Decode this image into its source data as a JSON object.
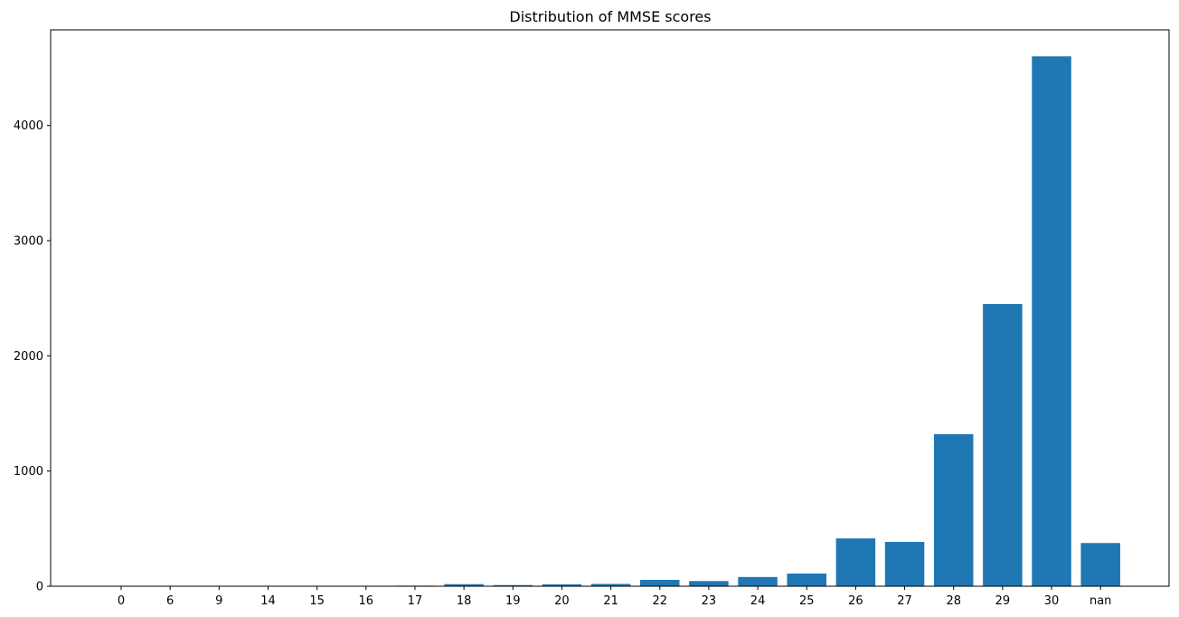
{
  "chart_data": {
    "type": "bar",
    "title": "Distribution of MMSE scores",
    "xlabel": "",
    "ylabel": "",
    "categories": [
      "0",
      "6",
      "9",
      "14",
      "15",
      "16",
      "17",
      "18",
      "19",
      "20",
      "21",
      "22",
      "23",
      "24",
      "25",
      "26",
      "27",
      "28",
      "29",
      "30",
      "nan"
    ],
    "values": [
      1,
      1,
      1,
      1,
      2,
      3,
      5,
      18,
      10,
      17,
      20,
      55,
      45,
      80,
      110,
      415,
      385,
      1320,
      2450,
      4600,
      375
    ],
    "ylim": [
      0,
      4830
    ],
    "yticks": [
      0,
      1000,
      2000,
      3000,
      4000
    ],
    "bar_color": "#1f77b4",
    "grid": false,
    "legend": "none"
  }
}
